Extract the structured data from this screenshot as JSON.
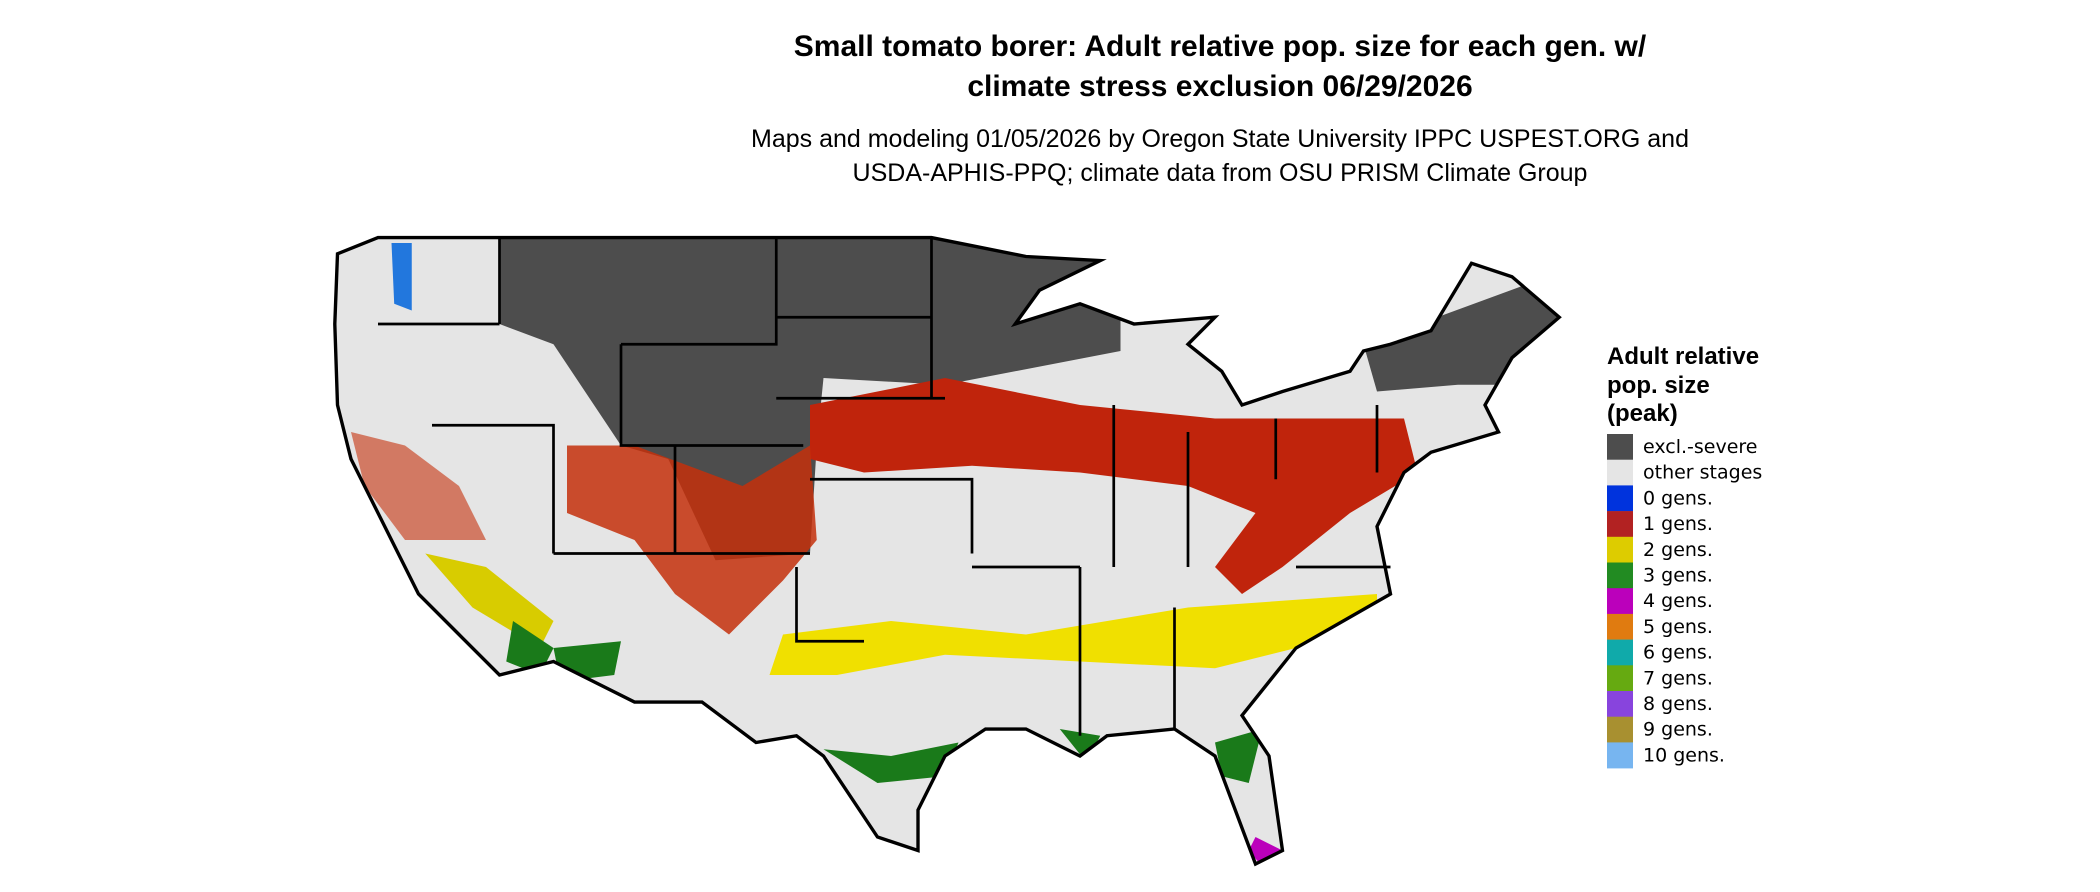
{
  "title": [
    "Small tomato borer: Adult relative pop. size for each gen. w/",
    "climate stress exclusion 06/29/2026"
  ],
  "subtitle": [
    "Maps and modeling 01/05/2026 by Oregon State University IPPC USPEST.ORG and",
    "USDA-APHIS-PPQ; climate data from OSU PRISM Climate Group"
  ],
  "legend": {
    "title": [
      "Adult relative",
      "pop. size",
      "(peak)"
    ],
    "items": [
      {
        "label": "excl.-severe",
        "color": "#4d4d4d"
      },
      {
        "label": "other stages",
        "color": "#e5e5e5"
      },
      {
        "label": "0 gens.",
        "color": "#0033dd"
      },
      {
        "label": "1 gens.",
        "color": "#b22222"
      },
      {
        "label": "2 gens.",
        "color": "#ddcc00"
      },
      {
        "label": "3 gens.",
        "color": "#228b22"
      },
      {
        "label": "4 gens.",
        "color": "#bb00bb"
      },
      {
        "label": "5 gens.",
        "color": "#e07b10"
      },
      {
        "label": "6 gens.",
        "color": "#10aaaa"
      },
      {
        "label": "7 gens.",
        "color": "#66aa11"
      },
      {
        "label": "8 gens.",
        "color": "#8844dd"
      },
      {
        "label": "9 gens.",
        "color": "#a89030"
      },
      {
        "label": "10 gens.",
        "color": "#77b5f0"
      }
    ]
  }
}
